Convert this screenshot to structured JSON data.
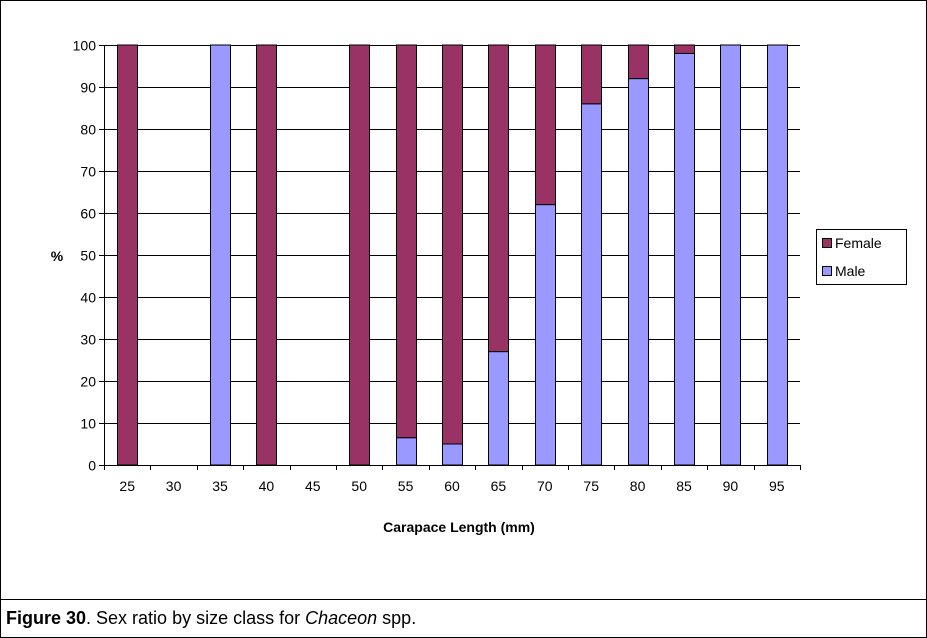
{
  "colors": {
    "female": "#993366",
    "male": "#9999ff",
    "grid": "#000000",
    "background": "#ffffff"
  },
  "caption": {
    "figure_number": "Figure 30",
    "text_before": ". Sex ratio by size class for ",
    "species": "Chaceon",
    "text_after": " spp."
  },
  "chart_data": {
    "type": "bar",
    "stacked": true,
    "title": "",
    "xlabel": "Carapace Length (mm)",
    "ylabel": "%",
    "ylim": [
      0,
      100
    ],
    "yticks": [
      0,
      10,
      20,
      30,
      40,
      50,
      60,
      70,
      80,
      90,
      100
    ],
    "grid": true,
    "legend_position": "right",
    "categories": [
      "25",
      "30",
      "35",
      "40",
      "45",
      "50",
      "55",
      "60",
      "65",
      "70",
      "75",
      "80",
      "85",
      "90",
      "95"
    ],
    "series": [
      {
        "name": "Male",
        "color": "#9999ff",
        "values": [
          0,
          0,
          100,
          0,
          0,
          0,
          6.5,
          5,
          27,
          62,
          86,
          92,
          98,
          100,
          100
        ]
      },
      {
        "name": "Female",
        "color": "#993366",
        "values": [
          100,
          0,
          0,
          100,
          0,
          100,
          93.5,
          95,
          73,
          38,
          14,
          8,
          2,
          0,
          0
        ]
      }
    ],
    "legend": [
      "Female",
      "Male"
    ]
  }
}
